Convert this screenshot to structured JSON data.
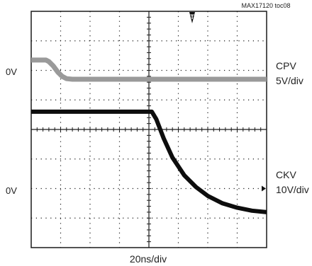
{
  "figure_id": "MAX17120 toc08",
  "trigger_marker": "T",
  "time_base": "20ns/div",
  "colors": {
    "background": "#ffffff",
    "grid": "#1a1a1a",
    "cpv_trace": "#9a9a9a",
    "ckv_trace": "#0d0d0d"
  },
  "chart_data": {
    "type": "line",
    "title": "",
    "xlabel": "20ns/div",
    "ylabel": "",
    "x_divisions": 8,
    "y_divisions": 8,
    "x_unit": "div",
    "y_unit": "div",
    "xlim": [
      0,
      8
    ],
    "ylim": [
      -4,
      4
    ],
    "grid": true,
    "series": [
      {
        "name": "CPV",
        "scale": "5V/div",
        "zero_label": "0V",
        "zero_level_div": 1.7,
        "x": [
          0,
          0.5,
          0.6,
          0.75,
          0.9,
          1.05,
          1.2,
          1.4,
          8
        ],
        "y": [
          2.35,
          2.35,
          2.3,
          2.15,
          1.95,
          1.8,
          1.72,
          1.7,
          1.7
        ]
      },
      {
        "name": "CKV",
        "scale": "10V/div",
        "zero_label": "0V",
        "zero_level_div": -2.0,
        "x": [
          0,
          4.1,
          4.25,
          4.5,
          4.8,
          5.2,
          5.6,
          6.0,
          6.5,
          7.0,
          7.5,
          8.0
        ],
        "y": [
          0.6,
          0.6,
          0.35,
          -0.3,
          -0.95,
          -1.55,
          -1.95,
          -2.25,
          -2.5,
          -2.65,
          -2.75,
          -2.8
        ]
      }
    ]
  }
}
